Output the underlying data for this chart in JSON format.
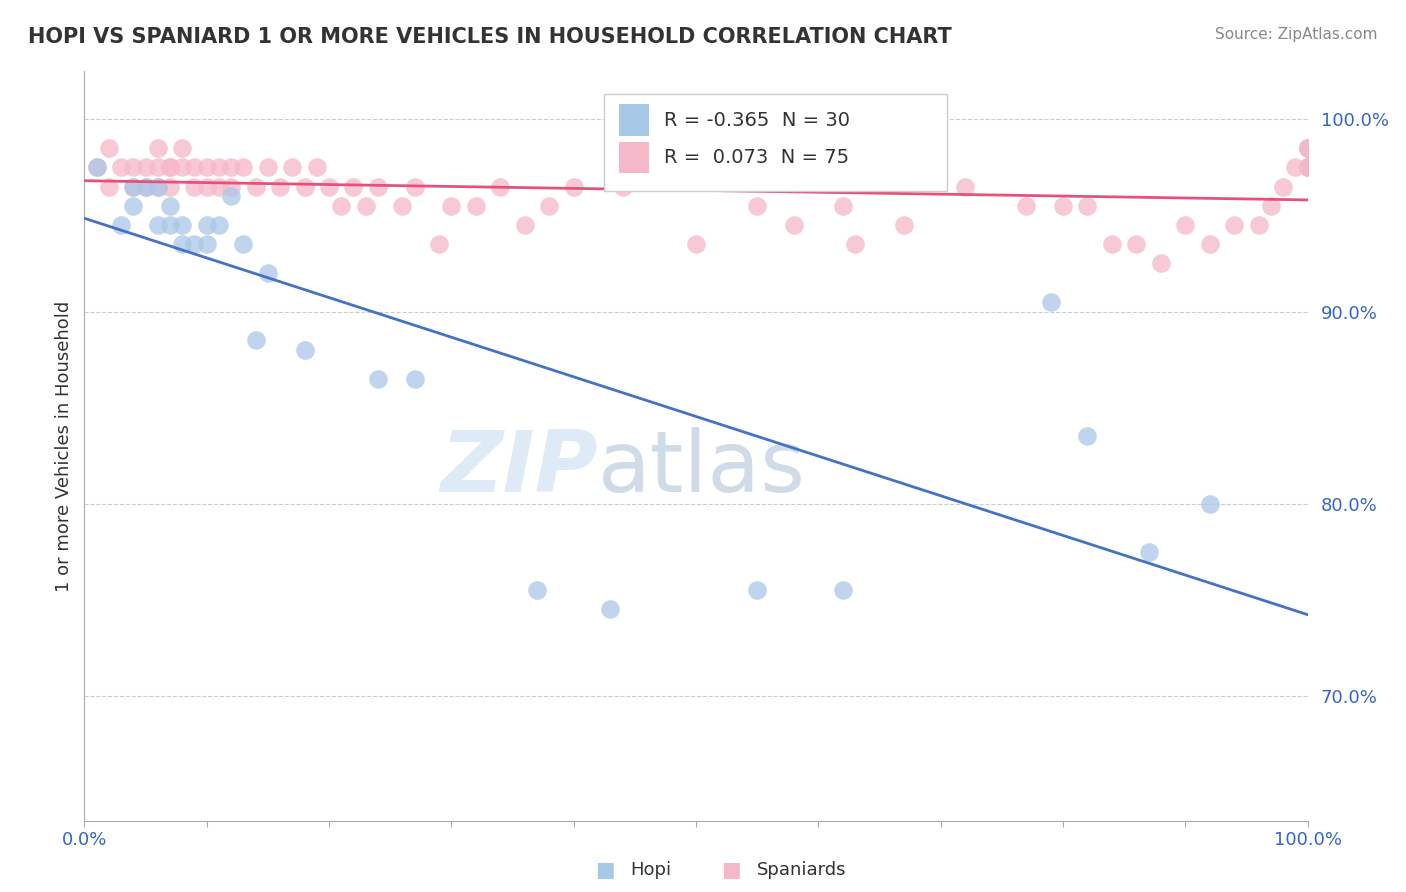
{
  "title": "HOPI VS SPANIARD 1 OR MORE VEHICLES IN HOUSEHOLD CORRELATION CHART",
  "source": "Source: ZipAtlas.com",
  "ylabel": "1 or more Vehicles in Household",
  "xlim": [
    0.0,
    1.0
  ],
  "ylim": [
    0.635,
    1.025
  ],
  "ytick_vals": [
    0.7,
    0.8,
    0.9,
    1.0
  ],
  "ytick_labels": [
    "70.0%",
    "80.0%",
    "90.0%",
    "100.0%"
  ],
  "legend_r_hopi": "-0.365",
  "legend_n_hopi": "30",
  "legend_r_spaniard": "0.073",
  "legend_n_spaniard": "75",
  "hopi_color": "#a8c8e8",
  "spaniard_color": "#f5b8c8",
  "hopi_line_color": "#4472c4",
  "spaniard_line_color": "#e8507a",
  "watermark_zip": "ZIP",
  "watermark_atlas": "atlas",
  "hopi_x": [
    0.01,
    0.03,
    0.04,
    0.04,
    0.05,
    0.06,
    0.06,
    0.07,
    0.07,
    0.08,
    0.08,
    0.09,
    0.1,
    0.1,
    0.11,
    0.12,
    0.13,
    0.14,
    0.15,
    0.18,
    0.24,
    0.27,
    0.37,
    0.43,
    0.55,
    0.62,
    0.79,
    0.82,
    0.87,
    0.92
  ],
  "hopi_y": [
    0.975,
    0.945,
    0.955,
    0.965,
    0.965,
    0.965,
    0.945,
    0.945,
    0.955,
    0.945,
    0.935,
    0.935,
    0.935,
    0.945,
    0.945,
    0.96,
    0.935,
    0.885,
    0.92,
    0.88,
    0.865,
    0.865,
    0.755,
    0.745,
    0.755,
    0.755,
    0.905,
    0.835,
    0.775,
    0.8
  ],
  "spaniard_x": [
    0.01,
    0.02,
    0.02,
    0.03,
    0.04,
    0.04,
    0.05,
    0.05,
    0.06,
    0.06,
    0.06,
    0.07,
    0.07,
    0.07,
    0.08,
    0.08,
    0.09,
    0.09,
    0.1,
    0.1,
    0.11,
    0.11,
    0.12,
    0.12,
    0.13,
    0.14,
    0.15,
    0.16,
    0.17,
    0.18,
    0.19,
    0.2,
    0.21,
    0.22,
    0.23,
    0.24,
    0.26,
    0.27,
    0.29,
    0.3,
    0.32,
    0.34,
    0.36,
    0.38,
    0.4,
    0.44,
    0.5,
    0.55,
    0.58,
    0.62,
    0.63,
    0.67,
    0.72,
    0.77,
    0.8,
    0.82,
    0.84,
    0.86,
    0.88,
    0.9,
    0.92,
    0.94,
    0.96,
    0.97,
    0.98,
    0.99,
    1.0,
    1.0,
    1.0,
    1.0,
    1.0,
    1.0,
    1.0,
    1.0,
    1.0
  ],
  "spaniard_y": [
    0.975,
    0.985,
    0.965,
    0.975,
    0.975,
    0.965,
    0.975,
    0.965,
    0.975,
    0.965,
    0.985,
    0.975,
    0.965,
    0.975,
    0.975,
    0.985,
    0.975,
    0.965,
    0.965,
    0.975,
    0.975,
    0.965,
    0.975,
    0.965,
    0.975,
    0.965,
    0.975,
    0.965,
    0.975,
    0.965,
    0.975,
    0.965,
    0.955,
    0.965,
    0.955,
    0.965,
    0.955,
    0.965,
    0.935,
    0.955,
    0.955,
    0.965,
    0.945,
    0.955,
    0.965,
    0.965,
    0.935,
    0.955,
    0.945,
    0.955,
    0.935,
    0.945,
    0.965,
    0.955,
    0.955,
    0.955,
    0.935,
    0.935,
    0.925,
    0.945,
    0.935,
    0.945,
    0.945,
    0.955,
    0.965,
    0.975,
    0.985,
    0.975,
    0.985,
    0.975,
    0.985,
    0.975,
    0.985,
    0.975,
    0.985
  ]
}
